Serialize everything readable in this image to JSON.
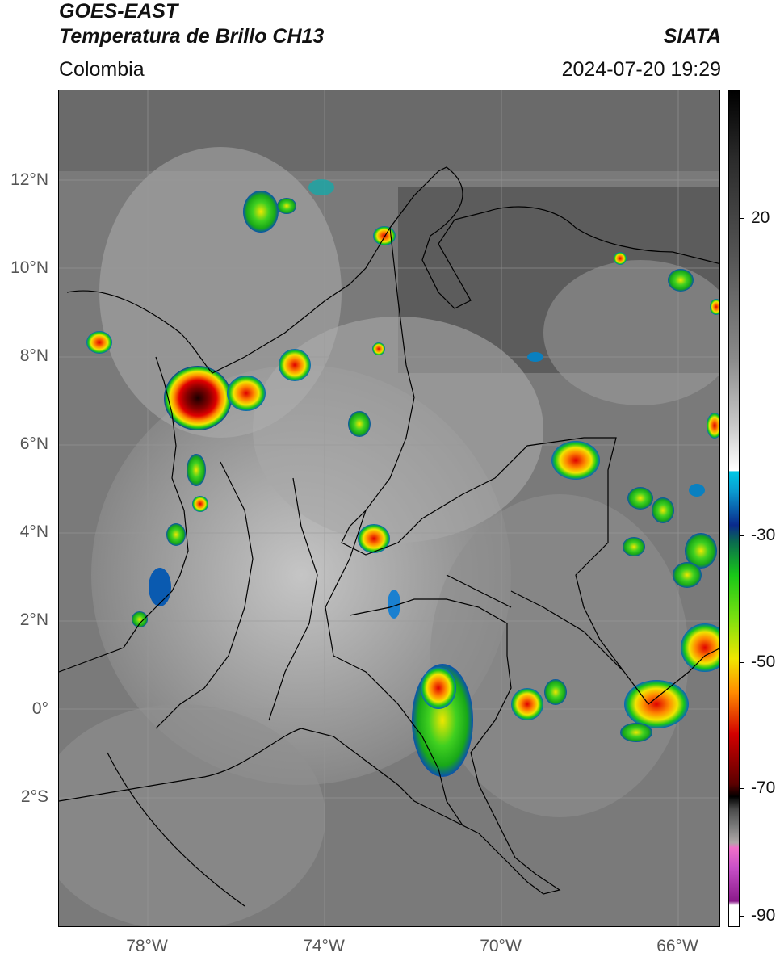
{
  "header": {
    "satellite": "GOES-EAST",
    "product": "Temperatura de Brillo CH13",
    "region": "Colombia",
    "agency": "SIATA",
    "datetime": "2024-07-20 19:29"
  },
  "map": {
    "latitude_labels": [
      "12°N",
      "10°N",
      "8°N",
      "6°N",
      "4°N",
      "2°N",
      "0°",
      "2°S"
    ],
    "longitude_labels": [
      "78°W",
      "74°W",
      "70°W",
      "66°W"
    ],
    "extent": {
      "lon_min": -80,
      "lon_max": -65,
      "lat_min": -5,
      "lat_max": 14
    }
  },
  "colorbar": {
    "tick_labels": [
      "20",
      "-30",
      "-50",
      "-70",
      "-90"
    ],
    "colors": {
      "cyan": "#00c8e6",
      "blue": "#0a2a8c",
      "green": "#18c818",
      "yellow": "#f0e600",
      "orange": "#ff8c00",
      "red": "#d20000",
      "black": "#000000",
      "magenta": "#c850c8"
    }
  }
}
